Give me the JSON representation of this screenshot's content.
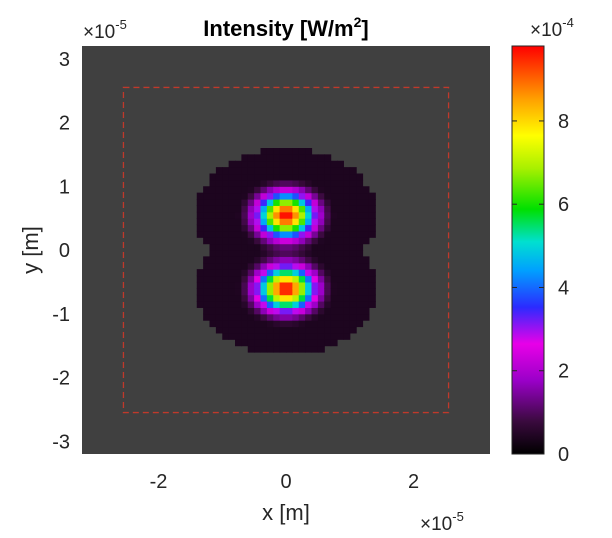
{
  "chart_data": {
    "type": "heatmap",
    "title": "Intensity [W/m²]",
    "title_main": "Intensity [W/m",
    "title_sup": "2",
    "title_end": "]",
    "xlabel": "x [m]",
    "ylabel": "y [m]",
    "xlim": [
      -3.2,
      3.2
    ],
    "ylim": [
      -3.2,
      3.2
    ],
    "x_ticks": [
      -2,
      0,
      2
    ],
    "y_ticks": [
      -3,
      -2,
      -1,
      0,
      1,
      2,
      3
    ],
    "x_tick_labels": [
      "-2",
      "0",
      "2"
    ],
    "y_tick_labels": [
      "-3",
      "-2",
      "-1",
      "0",
      "1",
      "2",
      "3"
    ],
    "x_exponent_base": "×10",
    "x_exponent_power": "-5",
    "y_exponent_base": "×10",
    "y_exponent_power": "-5",
    "colorbar": {
      "colormap": "jet-like (black-purple-magenta-blue-cyan-green-yellow-orange-red)",
      "clim": [
        0,
        9.8
      ],
      "ticks": [
        0,
        2,
        4,
        6,
        8
      ],
      "tick_labels": [
        "0",
        "2",
        "4",
        "6",
        "8"
      ],
      "exponent_base": "×10",
      "exponent_power": "-4"
    },
    "background_color": "#404040",
    "boundary_box": {
      "x": [
        -2.55,
        2.55
      ],
      "y": [
        -2.55,
        2.55
      ],
      "style": "dashed",
      "color": "#c0392b"
    },
    "lobes": [
      {
        "center_x": 0.0,
        "center_y": 0.55,
        "peak": 9.8
      },
      {
        "center_x": 0.0,
        "center_y": -0.6,
        "peak": 9.8
      }
    ],
    "grid": false
  }
}
